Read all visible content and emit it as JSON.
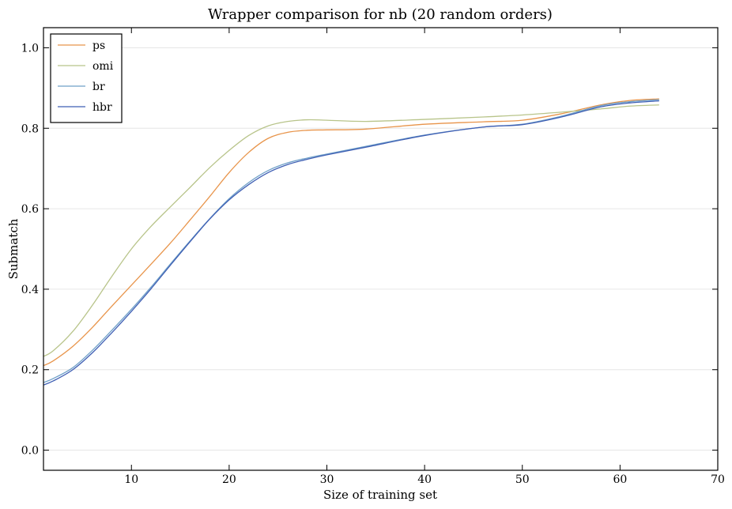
{
  "chart_data": {
    "type": "line",
    "title": "Wrapper comparison for nb (20 random orders)",
    "xlabel": "Size of training set",
    "ylabel": "Submatch",
    "xlim": [
      1,
      70
    ],
    "ylim": [
      -0.05,
      1.05
    ],
    "xticks": [
      10,
      20,
      30,
      40,
      50,
      60,
      70
    ],
    "yticks": [
      0.0,
      0.2,
      0.4,
      0.6,
      0.8,
      1.0
    ],
    "xtick_labels": [
      "10",
      "20",
      "30",
      "40",
      "50",
      "60",
      "70"
    ],
    "ytick_labels": [
      "0.0",
      "0.2",
      "0.4",
      "0.6",
      "0.8",
      "1.0"
    ],
    "grid": "horizontal",
    "legend_position": "top-left",
    "series": [
      {
        "name": "ps",
        "color": "#e8944a",
        "x": [
          1,
          2,
          4,
          6,
          8,
          10,
          12,
          14,
          16,
          18,
          20,
          22,
          24,
          26,
          28,
          30,
          34,
          40,
          46,
          50,
          54,
          58,
          61,
          64
        ],
        "y": [
          0.21,
          0.222,
          0.258,
          0.305,
          0.358,
          0.41,
          0.462,
          0.515,
          0.572,
          0.63,
          0.69,
          0.74,
          0.775,
          0.79,
          0.795,
          0.796,
          0.798,
          0.81,
          0.816,
          0.82,
          0.836,
          0.858,
          0.869,
          0.873
        ]
      },
      {
        "name": "omi",
        "color": "#b8c48a",
        "x": [
          1,
          2,
          4,
          6,
          8,
          10,
          12,
          14,
          16,
          18,
          20,
          22,
          24,
          26,
          28,
          30,
          34,
          40,
          46,
          50,
          54,
          58,
          61,
          64
        ],
        "y": [
          0.233,
          0.247,
          0.295,
          0.36,
          0.432,
          0.5,
          0.556,
          0.605,
          0.653,
          0.702,
          0.745,
          0.782,
          0.806,
          0.817,
          0.821,
          0.82,
          0.817,
          0.822,
          0.828,
          0.833,
          0.84,
          0.848,
          0.855,
          0.858
        ]
      },
      {
        "name": "br",
        "color": "#6fa0c8",
        "x": [
          1,
          2,
          4,
          6,
          8,
          10,
          12,
          14,
          16,
          18,
          20,
          22,
          24,
          26,
          28,
          30,
          34,
          40,
          46,
          50,
          54,
          58,
          61,
          64
        ],
        "y": [
          0.168,
          0.178,
          0.205,
          0.248,
          0.298,
          0.35,
          0.405,
          0.463,
          0.52,
          0.575,
          0.625,
          0.665,
          0.695,
          0.714,
          0.726,
          0.736,
          0.755,
          0.783,
          0.803,
          0.81,
          0.83,
          0.856,
          0.866,
          0.871
        ]
      },
      {
        "name": "hbr",
        "color": "#3f5fb4",
        "x": [
          1,
          2,
          4,
          6,
          8,
          10,
          12,
          14,
          16,
          18,
          20,
          22,
          24,
          26,
          28,
          30,
          34,
          40,
          46,
          50,
          54,
          58,
          61,
          64
        ],
        "y": [
          0.162,
          0.172,
          0.2,
          0.242,
          0.292,
          0.345,
          0.401,
          0.46,
          0.518,
          0.574,
          0.622,
          0.66,
          0.69,
          0.71,
          0.723,
          0.734,
          0.753,
          0.782,
          0.803,
          0.809,
          0.828,
          0.853,
          0.863,
          0.868
        ]
      }
    ]
  }
}
